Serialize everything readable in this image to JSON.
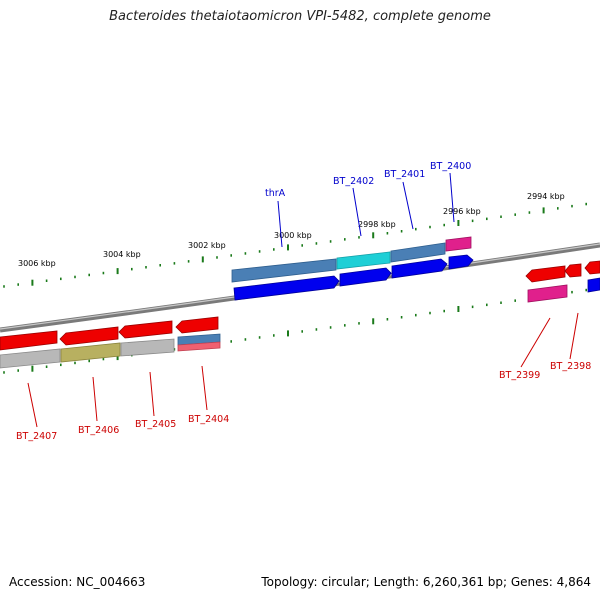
{
  "title": "Bacteroides thetaiotaomicron VPI-5482, complete genome",
  "footer": {
    "accession": "Accession: NC_004663",
    "summary": "Topology: circular; Length: 6,260,361 bp; Genes: 4,864"
  },
  "tick_labels": [
    "3006 kbp",
    "3004 kbp",
    "3002 kbp",
    "3000 kbp",
    "2998 kbp",
    "2996 kbp",
    "2994 kbp"
  ],
  "gene_labels_top": [
    "thrA",
    "BT_2402",
    "BT_2401",
    "BT_2400"
  ],
  "gene_labels_bottom": [
    "BT_2407",
    "BT_2406",
    "BT_2405",
    "BT_2404",
    "BT_2399",
    "BT_2398"
  ],
  "colors": {
    "backbone": "#8c8c8c",
    "tick": "#1a7a1a",
    "forward_cds": "#0000ee",
    "reverse_cds": "#ee0000",
    "steel_blue": "#4a7fb5",
    "cyan": "#1ecfd6",
    "magenta": "#e0208c",
    "grey": "#b8b8b8",
    "olive": "#b8b060",
    "top_label": "#0000cc",
    "bottom_label": "#cc0000"
  }
}
